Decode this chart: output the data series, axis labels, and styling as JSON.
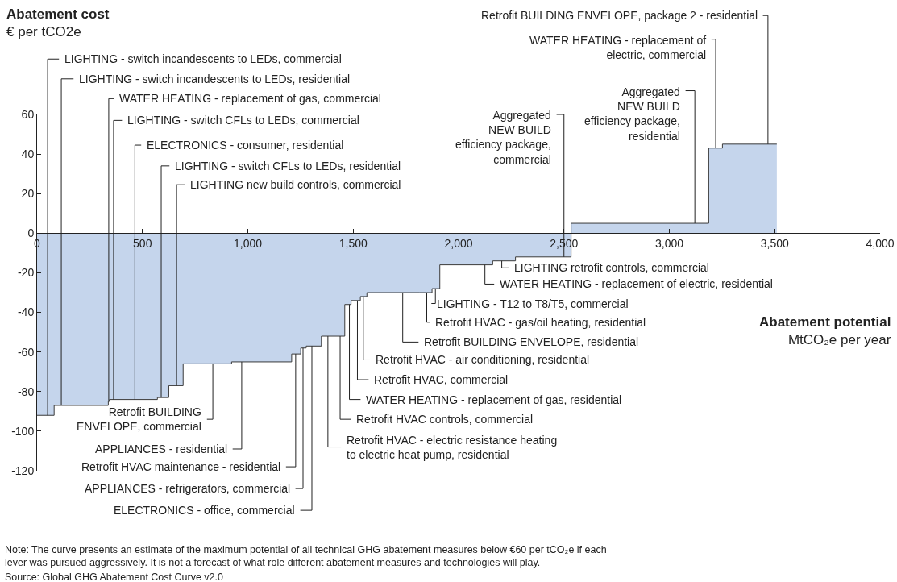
{
  "chart_data": {
    "type": "area",
    "ylabel": "Abatement cost\n€ per tCO2e",
    "xlabel": "Abatement potential\nMtCO₂e per year",
    "x": [
      0,
      81,
      338,
      343,
      408,
      571,
      625,
      693,
      923,
      1208,
      1251,
      1277,
      1349,
      1411,
      1460,
      1490,
      1534,
      1565,
      1814,
      1874,
      1911,
      2162,
      2270,
      2534,
      3187,
      3252,
      3510
    ],
    "values": [
      -92,
      -87,
      -85,
      -84,
      -84,
      -83,
      -77,
      -66,
      -65,
      -61,
      -58,
      -57,
      -52,
      -52,
      -36,
      -34,
      -32,
      -30,
      -30,
      -28,
      -16,
      -14,
      -12,
      5,
      43,
      45,
      45
    ],
    "color": "#c5d5ec",
    "xlim": [
      0,
      4000
    ],
    "xticks": [
      0,
      500,
      {
        "value": 1000,
        "label": "1,000"
      },
      {
        "value": 1500,
        "label": "1,500"
      },
      {
        "value": 2000,
        "label": "2,000"
      },
      {
        "value": 2500,
        "label": "2,500"
      },
      {
        "value": 3000,
        "label": "3,000"
      },
      {
        "value": 3500,
        "label": "3,500"
      },
      {
        "value": 4000,
        "label": "4,000"
      }
    ],
    "ylim": [
      -120,
      60
    ],
    "yticks": [
      -120,
      -100,
      -80,
      -60,
      -40,
      -20,
      0,
      20,
      40,
      60
    ],
    "annotations": [
      {
        "text": "LIGHTING - switch incandescents to LEDs, commercial",
        "x": 50,
        "y": -92
      },
      {
        "text": "LIGHTING - switch incandescents to LEDs, residential",
        "x": 115,
        "y": -87
      },
      {
        "text": "WATER HEATING - replacement of gas, commercial",
        "x": 340,
        "y": -85
      },
      {
        "text": "LIGHTING - switch CFLs to LEDs, commercial",
        "x": 363,
        "y": -84
      },
      {
        "text": "ELECTRONICS - consumer, residential",
        "x": 464,
        "y": -84
      },
      {
        "text": "LIGHTING - switch CFLs to LEDs, residential",
        "x": 589,
        "y": -83
      },
      {
        "text": "LIGHTING new build controls, commercial",
        "x": 662,
        "y": -77
      },
      {
        "text": "Retrofit BUILDING\nENVELOPE, commercial",
        "x": 834,
        "y": -66
      },
      {
        "text": "APPLIANCES - residential",
        "x": 971,
        "y": -65
      },
      {
        "text": "Retrofit HVAC maintenance - residential",
        "x": 1227,
        "y": -61
      },
      {
        "text": "APPLIANCES - refrigerators, commercial",
        "x": 1262,
        "y": -58
      },
      {
        "text": "ELECTRONICS - office, commercial",
        "x": 1304,
        "y": -57
      },
      {
        "text": "Retrofit HVAC - electric resistance heating\nto electric heat pump, residential",
        "x": 1380,
        "y": -52
      },
      {
        "text": "Retrofit HVAC controls, commercial",
        "x": 1438,
        "y": -52
      },
      {
        "text": "WATER HEATING - replacement of gas, residential",
        "x": 1482,
        "y": -36
      },
      {
        "text": "Retrofit HVAC, commercial",
        "x": 1520,
        "y": -34
      },
      {
        "text": "Retrofit HVAC - air conditioning, residential",
        "x": 1548,
        "y": -32
      },
      {
        "text": "Retrofit BUILDING ENVELOPE, residential",
        "x": 1735,
        "y": -30
      },
      {
        "text": "Retrofit HVAC - gas/oil heating, residential",
        "x": 1849,
        "y": -30
      },
      {
        "text": "LIGHTING - T12 to T8/T5, commercial",
        "x": 1890,
        "y": -28
      },
      {
        "text": "WATER HEATING - replacement of electric, residential",
        "x": 2125,
        "y": -16
      },
      {
        "text": "LIGHTING retrofit controls, commercial",
        "x": 2205,
        "y": -14
      },
      {
        "text": "Aggregated\nNEW BUILD\nefficiency package,\ncommercial",
        "x": 2500,
        "y": -12
      },
      {
        "text": "Aggregated\nNEW BUILD\nefficiency package,\nresidential",
        "x": 3121,
        "y": 5
      },
      {
        "text": "WATER HEATING - replacement of\nelectric, commercial",
        "x": 3220,
        "y": 43
      },
      {
        "text": "Retrofit BUILDING ENVELOPE, package 2 - residential",
        "x": 3468,
        "y": 45
      },
      "Note: The curve presents an estimate of the maximum potential of all technical GHG abatement measures below €60 per tCO₂e if each\nlever was pursued aggressively. It is not a forecast of what role different abatement measures and technologies will play.",
      "Source: Global GHG Abatement Cost Curve v2.0"
    ]
  }
}
